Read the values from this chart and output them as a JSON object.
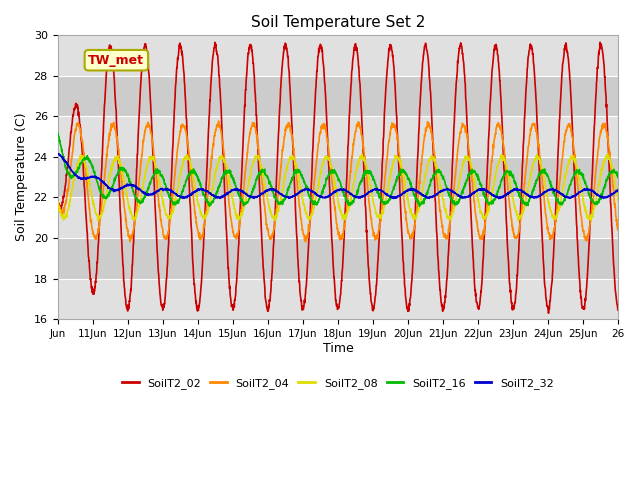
{
  "title": "Soil Temperature Set 2",
  "xlabel": "Time",
  "ylabel": "Soil Temperature (C)",
  "ylim": [
    16,
    30
  ],
  "xlim_days": [
    10,
    26
  ],
  "background_color": "#ffffff",
  "plot_bg_color": "#e0e0e0",
  "band_colors": [
    "#e0e0e0",
    "#cccccc"
  ],
  "grid_color": "#ffffff",
  "annotation_text": "TW_met",
  "annotation_color": "#cc0000",
  "annotation_bg": "#ffffcc",
  "annotation_border": "#aaaa00",
  "series": {
    "SoilT2_02": {
      "color": "#cc0000",
      "lw": 1.2
    },
    "SoilT2_04": {
      "color": "#ff8800",
      "lw": 1.2
    },
    "SoilT2_08": {
      "color": "#dddd00",
      "lw": 1.2
    },
    "SoilT2_16": {
      "color": "#00bb00",
      "lw": 1.2
    },
    "SoilT2_32": {
      "color": "#0000cc",
      "lw": 1.2
    }
  },
  "xtick_labels": [
    "Jun",
    "11Jun",
    "12Jun",
    "13Jun",
    "14Jun",
    "15Jun",
    "16Jun",
    "17Jun",
    "18Jun",
    "19Jun",
    "20Jun",
    "21Jun",
    "22Jun",
    "23Jun",
    "24Jun",
    "25Jun",
    "26"
  ],
  "xtick_positions": [
    10,
    11,
    12,
    13,
    14,
    15,
    16,
    17,
    18,
    19,
    20,
    21,
    22,
    23,
    24,
    25,
    26
  ],
  "ytick_labels": [
    "16",
    "18",
    "20",
    "22",
    "24",
    "26",
    "28",
    "30"
  ],
  "ytick_positions": [
    16,
    18,
    20,
    22,
    24,
    26,
    28,
    30
  ]
}
